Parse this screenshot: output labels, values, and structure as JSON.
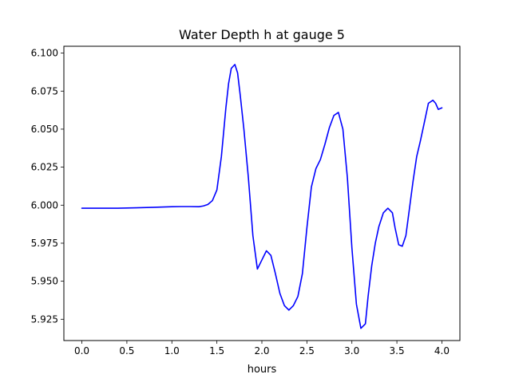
{
  "chart_data": {
    "type": "line",
    "title": "Water Depth h at gauge 5",
    "xlabel": "hours",
    "ylabel": "",
    "xlim": [
      -0.2,
      4.2
    ],
    "ylim": [
      5.911,
      6.1045
    ],
    "x_ticks": [
      0.0,
      0.5,
      1.0,
      1.5,
      2.0,
      2.5,
      3.0,
      3.5,
      4.0
    ],
    "x_tick_labels": [
      "0.0",
      "0.5",
      "1.0",
      "1.5",
      "2.0",
      "2.5",
      "3.0",
      "3.5",
      "4.0"
    ],
    "y_ticks": [
      5.925,
      5.95,
      5.975,
      6.0,
      6.025,
      6.05,
      6.075,
      6.1
    ],
    "y_tick_labels": [
      "5.925",
      "5.950",
      "5.975",
      "6.000",
      "6.025",
      "6.050",
      "6.075",
      "6.100"
    ],
    "grid": false,
    "colors": {
      "line": "#0000ff",
      "axes": "#000000",
      "background": "#ffffff"
    },
    "series": [
      {
        "x": [
          0.0,
          0.2,
          0.4,
          0.6,
          0.8,
          1.0,
          1.1,
          1.2,
          1.3,
          1.35,
          1.4,
          1.45,
          1.5,
          1.55,
          1.6,
          1.63,
          1.66,
          1.7,
          1.73,
          1.76,
          1.8,
          1.85,
          1.9,
          1.95,
          2.0,
          2.05,
          2.1,
          2.15,
          2.2,
          2.25,
          2.3,
          2.35,
          2.4,
          2.45,
          2.5,
          2.55,
          2.6,
          2.65,
          2.7,
          2.75,
          2.8,
          2.85,
          2.9,
          2.95,
          3.0,
          3.05,
          3.1,
          3.15,
          3.18,
          3.22,
          3.26,
          3.3,
          3.35,
          3.4,
          3.45,
          3.48,
          3.52,
          3.56,
          3.6,
          3.64,
          3.68,
          3.72,
          3.76,
          3.8,
          3.85,
          3.9,
          3.93,
          3.96,
          4.0
        ],
        "y": [
          5.998,
          5.998,
          5.998,
          5.9983,
          5.9986,
          5.999,
          5.9991,
          5.9991,
          5.999,
          5.9995,
          6.0005,
          6.003,
          6.01,
          6.032,
          6.064,
          6.08,
          6.09,
          6.0925,
          6.087,
          6.072,
          6.05,
          6.018,
          5.98,
          5.958,
          5.964,
          5.97,
          5.967,
          5.955,
          5.942,
          5.934,
          5.931,
          5.934,
          5.94,
          5.955,
          5.985,
          6.012,
          6.024,
          6.03,
          6.04,
          6.051,
          6.059,
          6.061,
          6.05,
          6.018,
          5.972,
          5.935,
          5.919,
          5.922,
          5.94,
          5.96,
          5.975,
          5.986,
          5.995,
          5.998,
          5.995,
          5.985,
          5.974,
          5.973,
          5.98,
          5.998,
          6.016,
          6.032,
          6.042,
          6.053,
          6.067,
          6.069,
          6.067,
          6.063,
          6.064
        ]
      }
    ]
  }
}
